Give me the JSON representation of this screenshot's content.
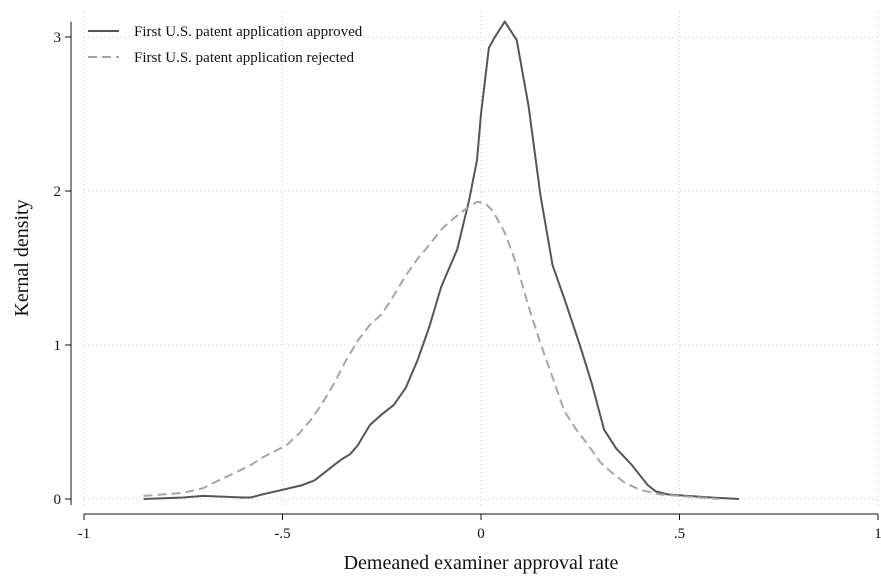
{
  "chart_data": {
    "type": "line",
    "title": "",
    "xlabel": "Demeaned examiner approval rate",
    "ylabel": "Kernal density",
    "xlim": [
      -1,
      1
    ],
    "ylim": [
      0,
      3.1
    ],
    "x_ticks": [
      -1,
      -0.5,
      0,
      0.5,
      1
    ],
    "x_tick_labels": [
      "-1",
      "-.5",
      "0",
      ".5",
      "1"
    ],
    "y_ticks": [
      0,
      1,
      2,
      3
    ],
    "y_tick_labels": [
      "0",
      "1",
      "2",
      "3"
    ],
    "grid": true,
    "legend_position": "top-left",
    "series": [
      {
        "name": "First U.S. patent application approved",
        "color": "#555555",
        "dash": "solid",
        "x": [
          -0.85,
          -0.75,
          -0.7,
          -0.6,
          -0.58,
          -0.55,
          -0.5,
          -0.45,
          -0.42,
          -0.4,
          -0.37,
          -0.35,
          -0.33,
          -0.31,
          -0.28,
          -0.25,
          -0.22,
          -0.19,
          -0.16,
          -0.13,
          -0.1,
          -0.06,
          -0.03,
          -0.01,
          0.0,
          0.02,
          0.035,
          0.06,
          0.09,
          0.12,
          0.15,
          0.18,
          0.21,
          0.25,
          0.28,
          0.31,
          0.34,
          0.38,
          0.42,
          0.44,
          0.47,
          0.52,
          0.58,
          0.65
        ],
        "y": [
          0.0,
          0.01,
          0.02,
          0.01,
          0.01,
          0.03,
          0.06,
          0.09,
          0.12,
          0.16,
          0.22,
          0.26,
          0.29,
          0.35,
          0.48,
          0.55,
          0.61,
          0.72,
          0.9,
          1.12,
          1.38,
          1.62,
          1.94,
          2.2,
          2.5,
          2.93,
          3.0,
          3.1,
          2.98,
          2.55,
          1.97,
          1.52,
          1.3,
          0.99,
          0.74,
          0.45,
          0.33,
          0.22,
          0.09,
          0.05,
          0.03,
          0.02,
          0.01,
          0.0
        ]
      },
      {
        "name": "First U.S. patent application rejected",
        "color": "#a6a6a6",
        "dash": "dashed",
        "x": [
          -0.85,
          -0.8,
          -0.75,
          -0.7,
          -0.67,
          -0.62,
          -0.58,
          -0.55,
          -0.52,
          -0.49,
          -0.46,
          -0.43,
          -0.4,
          -0.37,
          -0.34,
          -0.31,
          -0.28,
          -0.25,
          -0.22,
          -0.19,
          -0.16,
          -0.13,
          -0.1,
          -0.07,
          -0.04,
          -0.01,
          0.01,
          0.03,
          0.06,
          0.09,
          0.12,
          0.15,
          0.18,
          0.21,
          0.24,
          0.27,
          0.3,
          0.33,
          0.36,
          0.4,
          0.45,
          0.5,
          0.55,
          0.6
        ],
        "y": [
          0.02,
          0.03,
          0.04,
          0.07,
          0.11,
          0.17,
          0.22,
          0.27,
          0.31,
          0.35,
          0.42,
          0.51,
          0.62,
          0.75,
          0.9,
          1.03,
          1.13,
          1.2,
          1.32,
          1.45,
          1.56,
          1.65,
          1.75,
          1.82,
          1.88,
          1.93,
          1.92,
          1.87,
          1.73,
          1.52,
          1.25,
          1.01,
          0.79,
          0.57,
          0.45,
          0.35,
          0.24,
          0.17,
          0.11,
          0.06,
          0.03,
          0.02,
          0.01,
          0.0
        ]
      }
    ]
  }
}
